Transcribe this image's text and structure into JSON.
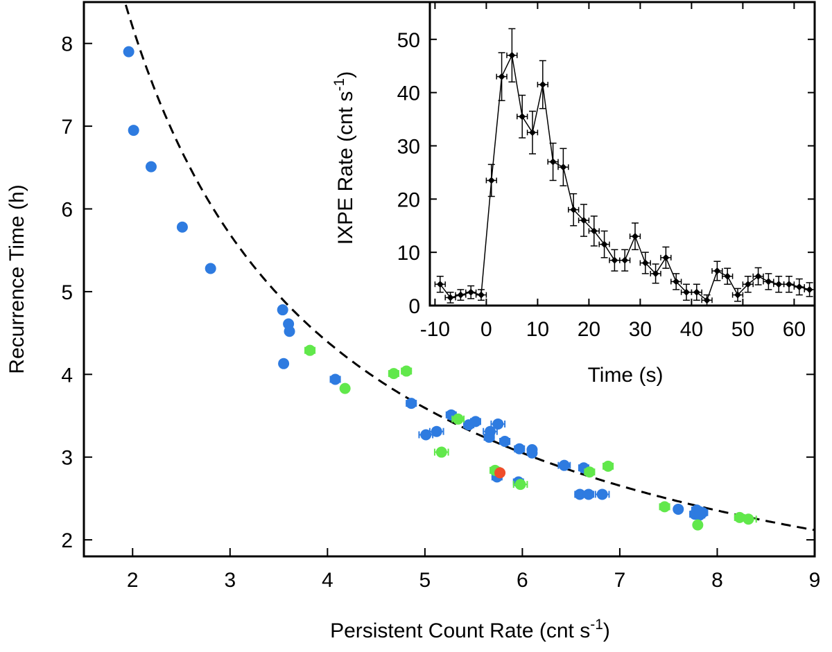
{
  "chart_data": [
    {
      "type": "scatter",
      "xlabel": "Persistent Count Rate (cnt s",
      "xlabel_sup": "-1",
      "xlabel_close": ")",
      "ylabel": "Recurrence Time (h)",
      "xlim": [
        1.5,
        9
      ],
      "ylim": [
        1.8,
        8.5
      ],
      "xticks": [
        "2",
        "3",
        "4",
        "5",
        "6",
        "7",
        "8",
        "9"
      ],
      "yticks": [
        "2",
        "3",
        "4",
        "5",
        "6",
        "7",
        "8"
      ],
      "fit_curve": {
        "style": "dashed",
        "model": "t = 15.3 / rate^0.9",
        "a": 15.3,
        "b": 0.9
      },
      "series": [
        {
          "name": "blue",
          "color": "#2e7be0",
          "points": [
            [
              1.96,
              7.9,
              0.02
            ],
            [
              2.01,
              6.95,
              0.0
            ],
            [
              2.19,
              6.51,
              0.0
            ],
            [
              2.51,
              5.78,
              0.0
            ],
            [
              2.8,
              5.28,
              0.0
            ],
            [
              3.54,
              4.78,
              0.0
            ],
            [
              3.6,
              4.61,
              0.03
            ],
            [
              3.61,
              4.52,
              0.0
            ],
            [
              3.55,
              4.13,
              0.0
            ],
            [
              4.08,
              3.94,
              0.05
            ],
            [
              4.86,
              3.65,
              0.05
            ],
            [
              5.27,
              3.51,
              0.05
            ],
            [
              5.45,
              3.39,
              0.05
            ],
            [
              5.52,
              3.43,
              0.05
            ],
            [
              5.75,
              3.4,
              0.07
            ],
            [
              5.67,
              3.31,
              0.07
            ],
            [
              5.66,
              3.24,
              0.05
            ],
            [
              5.82,
              3.19,
              0.05
            ],
            [
              5.12,
              3.31,
              0.07
            ],
            [
              5.01,
              3.27,
              0.07
            ],
            [
              5.97,
              3.1,
              0.05
            ],
            [
              6.1,
              3.09,
              0.0
            ],
            [
              6.1,
              3.05,
              0.0
            ],
            [
              6.43,
              2.9,
              0.06
            ],
            [
              6.63,
              2.87,
              0.05
            ],
            [
              5.74,
              2.76,
              0.05
            ],
            [
              5.96,
              2.7,
              0.05
            ],
            [
              6.59,
              2.55,
              0.05
            ],
            [
              6.68,
              2.55,
              0.05
            ],
            [
              6.82,
              2.55,
              0.07
            ],
            [
              7.6,
              2.37,
              0.0
            ],
            [
              7.79,
              2.36,
              0.05
            ],
            [
              7.85,
              2.33,
              0.05
            ],
            [
              7.77,
              2.31,
              0.05
            ],
            [
              7.82,
              2.3,
              0.05
            ]
          ]
        },
        {
          "name": "green",
          "color": "#61e84b",
          "points": [
            [
              3.82,
              4.29,
              0.05
            ],
            [
              4.18,
              3.83,
              0.0
            ],
            [
              4.68,
              4.01,
              0.05
            ],
            [
              4.81,
              4.04,
              0.05
            ],
            [
              5.34,
              3.46,
              0.06
            ],
            [
              5.17,
              3.06,
              0.07
            ],
            [
              5.72,
              2.84,
              0.05
            ],
            [
              5.98,
              2.67,
              0.07
            ],
            [
              6.69,
              2.82,
              0.05
            ],
            [
              6.88,
              2.89,
              0.05
            ],
            [
              7.46,
              2.4,
              0.05
            ],
            [
              7.8,
              2.18,
              0.03
            ],
            [
              8.23,
              2.27,
              0.05
            ],
            [
              8.32,
              2.25,
              0.08
            ]
          ]
        },
        {
          "name": "red",
          "color": "#f04d2a",
          "points": [
            [
              5.77,
              2.81,
              0.03
            ]
          ]
        }
      ]
    },
    {
      "type": "line",
      "xlabel": "Time (s)",
      "ylabel": "IXPE Rate (cnt s",
      "ylabel_sup": "-1",
      "ylabel_close": ")",
      "xlim": [
        -11,
        64
      ],
      "ylim": [
        0,
        57
      ],
      "xticks": [
        "-10",
        "0",
        "10",
        "20",
        "30",
        "40",
        "50",
        "60"
      ],
      "yticks": [
        "0",
        "10",
        "20",
        "30",
        "40",
        "50"
      ],
      "x": [
        -9,
        -7,
        -5,
        -3,
        -1,
        1,
        3,
        5,
        7,
        9,
        11,
        13,
        15,
        17,
        19,
        21,
        23,
        25,
        27,
        29,
        31,
        33,
        35,
        37,
        39,
        41,
        43,
        45,
        47,
        49,
        51,
        53,
        55,
        57,
        59,
        61,
        63
      ],
      "y": [
        4.0,
        1.5,
        2.0,
        2.5,
        2.0,
        23.5,
        43.0,
        47.0,
        35.5,
        32.5,
        41.5,
        27.0,
        26.0,
        18.0,
        16.0,
        14.0,
        11.5,
        8.5,
        8.5,
        13.0,
        8.0,
        6.0,
        9.0,
        4.5,
        2.5,
        2.5,
        1.0,
        6.5,
        5.5,
        2.0,
        4.0,
        5.5,
        4.5,
        4.0,
        4.0,
        3.5,
        3.0
      ],
      "yerr": [
        1.5,
        1.0,
        1.0,
        1.2,
        1.0,
        3.0,
        4.5,
        5.0,
        4.0,
        4.0,
        4.5,
        3.5,
        3.5,
        3.0,
        3.0,
        2.8,
        2.5,
        2.0,
        2.0,
        2.5,
        2.0,
        1.8,
        2.0,
        1.5,
        1.5,
        1.5,
        1.0,
        1.8,
        1.5,
        1.2,
        1.5,
        1.6,
        1.5,
        1.5,
        1.5,
        1.5,
        1.3
      ],
      "xerr": 1.0
    }
  ]
}
